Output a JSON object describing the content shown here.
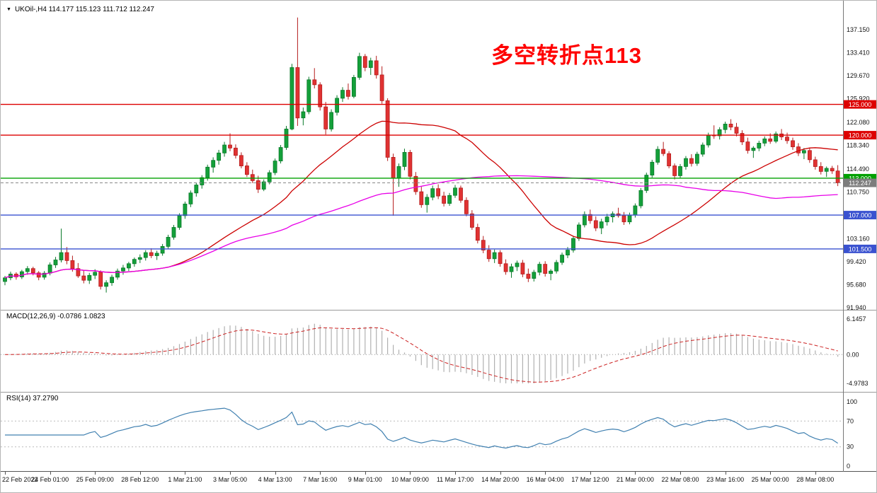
{
  "header": {
    "symbol_line": "UKOil-,H4  114.177 115.123 111.712 112.247"
  },
  "chart_data": {
    "type": "candlestick",
    "symbol": "UKOil-",
    "timeframe": "H4",
    "quote": {
      "open": "114.177",
      "high": "115.123",
      "low": "111.712",
      "close": "112.247"
    },
    "annotation": {
      "text": "多空转折点113",
      "color": "#ff0000"
    },
    "colors": {
      "up": "#14a03a",
      "up_stroke": "#0a7a2a",
      "down": "#e03232",
      "down_stroke": "#b51d1d",
      "macd_hist": "#b0b0b0",
      "macd_signal": "#cc2222",
      "rsi_line": "#4080b0"
    },
    "y_axis_labels": [
      "137.150",
      "133.410",
      "129.670",
      "125.920",
      "122.080",
      "118.340",
      "114.490",
      "110.750",
      "103.160",
      "99.420",
      "95.680",
      "91.940"
    ],
    "hlines": [
      {
        "price": 125.0,
        "label": "125.000",
        "color": "#dd0000"
      },
      {
        "price": 120.0,
        "label": "120.000",
        "color": "#dd0000"
      },
      {
        "price": 113.0,
        "label": "113.000",
        "color": "#00a000"
      },
      {
        "price": 107.0,
        "label": "107.000",
        "color": "#3a52d0"
      },
      {
        "price": 101.5,
        "label": "101.500",
        "color": "#3a52d0"
      }
    ],
    "current_price": {
      "value": 112.247,
      "label": "112.247",
      "line_color": "#888888",
      "badge_color": "#7d7d7d"
    },
    "ma": [
      {
        "period": 30,
        "color": "#cc0000"
      },
      {
        "period": 70,
        "color": "#e800e8"
      }
    ],
    "x_label_step": 8,
    "x_labels": [
      "22 Feb 2022",
      "24 Feb 01:00",
      "25 Feb 09:00",
      "28 Feb 12:00",
      "1 Mar 21:00",
      "3 Mar 05:00",
      "4 Mar 13:00",
      "7 Mar 16:00",
      "9 Mar 01:00",
      "10 Mar 09:00",
      "11 Mar 17:00",
      "14 Mar 20:00",
      "16 Mar 04:00",
      "17 Mar 12:00",
      "21 Mar 00:00",
      "22 Mar 08:00",
      "23 Mar 16:00",
      "25 Mar 00:00",
      "28 Mar 08:00"
    ],
    "macd": {
      "label": "MACD(12,26,9) -0.0786 1.0823",
      "fast": 12,
      "slow": 26,
      "signal": 9,
      "axis_labels": [
        "6.1457",
        "0.00",
        "-4.9783"
      ],
      "max": 6.1457,
      "min": -4.9783
    },
    "rsi": {
      "label": "RSI(14) 37.2790",
      "period": 14,
      "axis_labels": [
        "100",
        "70",
        "30",
        "0"
      ],
      "axis_values": [
        100,
        70,
        30,
        0
      ],
      "levels": [
        70,
        30
      ]
    },
    "candles": [
      [
        96.2,
        97.1,
        95.6,
        96.8
      ],
      [
        96.8,
        97.8,
        96.4,
        97.4
      ],
      [
        97.4,
        97.7,
        96.5,
        96.95
      ],
      [
        96.95,
        98.1,
        96.6,
        97.8
      ],
      [
        97.8,
        98.7,
        97.3,
        98.3
      ],
      [
        98.3,
        98.6,
        97.2,
        97.6
      ],
      [
        97.6,
        97.9,
        96.4,
        96.9
      ],
      [
        96.9,
        97.9,
        96.5,
        97.55
      ],
      [
        97.55,
        99.3,
        97.2,
        98.9
      ],
      [
        98.9,
        100.2,
        98.4,
        99.7
      ],
      [
        99.7,
        104.8,
        99.3,
        100.9
      ],
      [
        100.9,
        101.8,
        99.0,
        99.6
      ],
      [
        99.6,
        100.4,
        97.8,
        98.3
      ],
      [
        98.3,
        99.2,
        96.8,
        97.1
      ],
      [
        97.1,
        98.0,
        95.9,
        96.4
      ],
      [
        96.4,
        97.6,
        95.8,
        97.2
      ],
      [
        97.2,
        98.2,
        96.6,
        97.7
      ],
      [
        97.7,
        98.0,
        94.9,
        95.4
      ],
      [
        95.4,
        96.4,
        94.4,
        96.0
      ],
      [
        96.0,
        97.3,
        95.5,
        96.9
      ],
      [
        96.9,
        98.3,
        96.5,
        97.9
      ],
      [
        97.9,
        98.9,
        97.3,
        98.4
      ],
      [
        98.4,
        99.4,
        97.9,
        99.1
      ],
      [
        99.1,
        100.1,
        98.6,
        99.8
      ],
      [
        99.8,
        100.6,
        99.2,
        100.1
      ],
      [
        100.1,
        101.3,
        99.6,
        100.9
      ],
      [
        100.9,
        101.6,
        100.0,
        100.4
      ],
      [
        100.4,
        101.2,
        99.7,
        100.8
      ],
      [
        100.8,
        102.3,
        100.4,
        101.9
      ],
      [
        101.9,
        103.8,
        101.5,
        103.4
      ],
      [
        103.4,
        105.4,
        103.0,
        105.0
      ],
      [
        105.0,
        107.3,
        104.6,
        106.9
      ],
      [
        106.9,
        109.2,
        106.4,
        108.8
      ],
      [
        108.8,
        111.0,
        108.3,
        110.6
      ],
      [
        110.6,
        112.3,
        110.0,
        111.9
      ],
      [
        111.9,
        113.5,
        111.3,
        113.1
      ],
      [
        113.1,
        115.2,
        112.6,
        114.8
      ],
      [
        114.8,
        116.4,
        113.9,
        115.9
      ],
      [
        115.9,
        117.6,
        115.2,
        117.1
      ],
      [
        117.1,
        118.9,
        116.5,
        118.4
      ],
      [
        118.4,
        120.3,
        117.4,
        117.9
      ],
      [
        117.9,
        118.5,
        116.2,
        116.7
      ],
      [
        116.7,
        117.2,
        114.6,
        115.0
      ],
      [
        115.0,
        115.6,
        113.2,
        113.6
      ],
      [
        113.6,
        114.4,
        112.2,
        112.6
      ],
      [
        112.6,
        113.4,
        110.6,
        111.2
      ],
      [
        111.2,
        112.8,
        110.9,
        112.4
      ],
      [
        112.4,
        114.3,
        112.0,
        113.9
      ],
      [
        113.9,
        116.2,
        113.5,
        115.8
      ],
      [
        115.8,
        118.4,
        115.4,
        118.0
      ],
      [
        118.0,
        121.5,
        117.6,
        121.0
      ],
      [
        121.0,
        131.6,
        120.8,
        131.0
      ],
      [
        131.0,
        139.13,
        121.5,
        122.8
      ],
      [
        122.8,
        124.5,
        121.6,
        123.8
      ],
      [
        123.8,
        129.5,
        123.4,
        129.0
      ],
      [
        129.0,
        130.9,
        127.6,
        128.2
      ],
      [
        128.2,
        128.6,
        124.0,
        124.6
      ],
      [
        124.6,
        125.4,
        120.1,
        121.0
      ],
      [
        121.0,
        124.2,
        120.6,
        123.7
      ],
      [
        123.7,
        126.5,
        123.2,
        126.0
      ],
      [
        126.0,
        127.8,
        125.4,
        127.3
      ],
      [
        127.3,
        128.4,
        125.8,
        126.3
      ],
      [
        126.3,
        129.8,
        126.0,
        129.4
      ],
      [
        129.4,
        133.4,
        129.0,
        132.8
      ],
      [
        132.8,
        133.2,
        130.4,
        131.0
      ],
      [
        131.0,
        132.6,
        129.8,
        132.1
      ],
      [
        132.1,
        132.9,
        129.2,
        129.8
      ],
      [
        129.8,
        131.2,
        125.1,
        125.6
      ],
      [
        125.6,
        126.0,
        115.8,
        116.4
      ],
      [
        116.4,
        117.0,
        106.9,
        113.0
      ],
      [
        113.0,
        115.4,
        111.6,
        114.9
      ],
      [
        114.9,
        117.8,
        114.3,
        117.2
      ],
      [
        117.2,
        117.6,
        112.8,
        113.3
      ],
      [
        113.3,
        114.0,
        110.3,
        110.8
      ],
      [
        110.8,
        111.6,
        108.2,
        108.7
      ],
      [
        108.7,
        110.4,
        107.4,
        109.9
      ],
      [
        109.9,
        111.8,
        109.4,
        111.3
      ],
      [
        111.3,
        112.0,
        109.6,
        110.1
      ],
      [
        110.1,
        110.8,
        108.4,
        108.9
      ],
      [
        108.9,
        110.6,
        108.5,
        110.2
      ],
      [
        110.2,
        111.9,
        109.8,
        111.4
      ],
      [
        111.4,
        111.8,
        109.0,
        109.4
      ],
      [
        109.4,
        109.9,
        106.8,
        107.2
      ],
      [
        107.2,
        107.8,
        104.6,
        105.0
      ],
      [
        105.0,
        105.6,
        102.4,
        102.9
      ],
      [
        102.9,
        103.6,
        100.8,
        101.3
      ],
      [
        101.3,
        102.1,
        99.4,
        99.9
      ],
      [
        99.9,
        101.4,
        99.2,
        100.9
      ],
      [
        100.9,
        101.3,
        98.6,
        99.1
      ],
      [
        99.1,
        99.8,
        97.3,
        97.8
      ],
      [
        97.8,
        99.1,
        96.8,
        98.6
      ],
      [
        98.6,
        99.6,
        97.9,
        99.2
      ],
      [
        99.2,
        99.7,
        96.9,
        97.4
      ],
      [
        97.4,
        98.3,
        96.1,
        96.7
      ],
      [
        96.7,
        98.1,
        96.2,
        97.7
      ],
      [
        97.7,
        99.4,
        97.2,
        99.0
      ],
      [
        99.0,
        99.5,
        97.0,
        97.5
      ],
      [
        97.5,
        98.2,
        96.4,
        97.9
      ],
      [
        97.9,
        99.7,
        97.5,
        99.3
      ],
      [
        99.3,
        100.9,
        98.9,
        100.5
      ],
      [
        100.5,
        101.8,
        100.0,
        101.3
      ],
      [
        101.3,
        103.6,
        100.9,
        103.2
      ],
      [
        103.2,
        105.8,
        102.8,
        105.4
      ],
      [
        105.4,
        107.6,
        105.0,
        107.1
      ],
      [
        107.1,
        107.9,
        105.6,
        106.1
      ],
      [
        106.1,
        106.8,
        104.4,
        104.9
      ],
      [
        104.9,
        106.4,
        103.9,
        105.9
      ],
      [
        105.9,
        107.2,
        105.3,
        106.7
      ],
      [
        106.7,
        107.6,
        105.8,
        107.2
      ],
      [
        107.2,
        108.2,
        106.6,
        106.9
      ],
      [
        106.9,
        107.5,
        105.4,
        105.9
      ],
      [
        105.9,
        107.4,
        105.5,
        107.0
      ],
      [
        107.0,
        108.9,
        106.6,
        108.5
      ],
      [
        108.5,
        111.4,
        108.1,
        111.0
      ],
      [
        111.0,
        113.9,
        110.6,
        113.5
      ],
      [
        113.5,
        116.0,
        113.1,
        115.6
      ],
      [
        115.6,
        118.2,
        115.2,
        117.7
      ],
      [
        117.7,
        118.9,
        116.6,
        117.0
      ],
      [
        117.0,
        117.4,
        114.6,
        115.0
      ],
      [
        115.0,
        115.4,
        112.8,
        113.4
      ],
      [
        113.4,
        115.3,
        113.0,
        114.9
      ],
      [
        114.9,
        116.6,
        114.4,
        116.2
      ],
      [
        116.2,
        116.9,
        114.9,
        115.4
      ],
      [
        115.4,
        117.3,
        115.0,
        116.9
      ],
      [
        116.9,
        118.8,
        116.5,
        118.4
      ],
      [
        118.4,
        120.4,
        118.0,
        120.0
      ],
      [
        120.0,
        121.6,
        119.4,
        119.9
      ],
      [
        119.9,
        121.3,
        119.3,
        120.9
      ],
      [
        120.9,
        122.2,
        120.3,
        121.8
      ],
      [
        121.8,
        122.6,
        120.8,
        121.3
      ],
      [
        121.3,
        122.0,
        119.8,
        120.3
      ],
      [
        120.3,
        120.8,
        118.4,
        118.9
      ],
      [
        118.9,
        119.6,
        117.0,
        117.5
      ],
      [
        117.5,
        118.2,
        116.3,
        117.9
      ],
      [
        117.9,
        119.1,
        117.4,
        118.7
      ],
      [
        118.7,
        119.8,
        118.2,
        119.4
      ],
      [
        119.4,
        120.3,
        118.6,
        119.0
      ],
      [
        119.0,
        120.6,
        118.7,
        120.2
      ],
      [
        120.2,
        121.0,
        119.2,
        119.7
      ],
      [
        119.7,
        120.4,
        118.6,
        119.1
      ],
      [
        119.1,
        119.6,
        117.6,
        118.1
      ],
      [
        118.1,
        118.7,
        116.6,
        117.1
      ],
      [
        117.1,
        117.9,
        116.1,
        117.5
      ],
      [
        117.5,
        117.9,
        115.5,
        116.0
      ],
      [
        116.0,
        116.5,
        114.4,
        114.9
      ],
      [
        114.9,
        115.6,
        113.6,
        114.1
      ],
      [
        114.1,
        114.9,
        113.2,
        114.6
      ],
      [
        114.6,
        115.0,
        113.7,
        114.18
      ],
      [
        114.177,
        115.123,
        111.712,
        112.247
      ]
    ]
  }
}
